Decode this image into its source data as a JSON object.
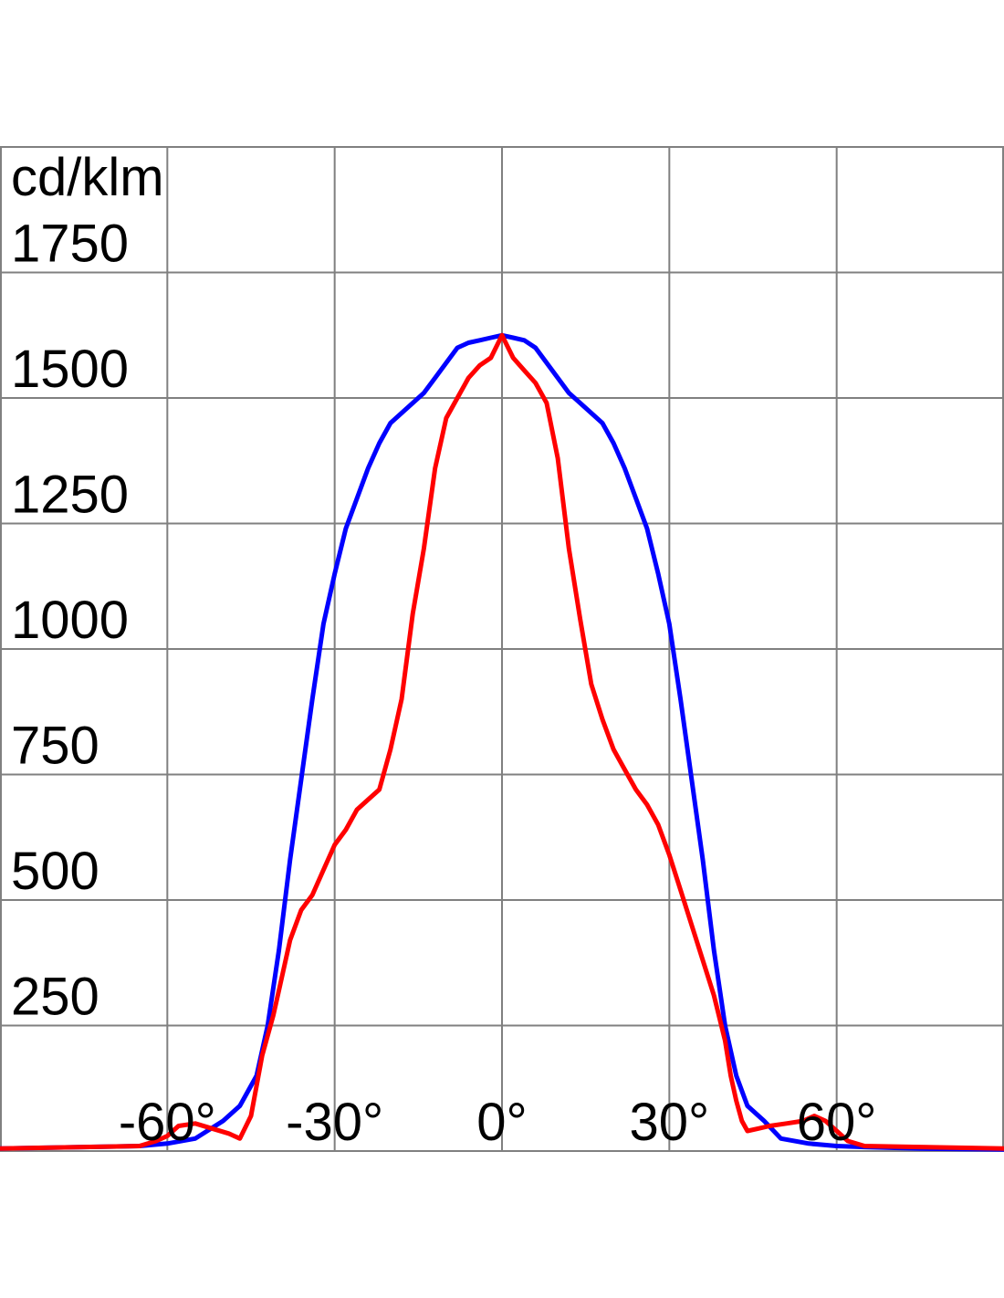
{
  "chart_data": {
    "type": "line",
    "ylabel": "cd/klm",
    "y_ticks": [
      "1750",
      "1500",
      "1250",
      "1000",
      "750",
      "500",
      "250"
    ],
    "x_ticks": [
      "-60°",
      "-30°",
      "0°",
      "30°",
      "60°"
    ],
    "xlim": [
      -90,
      90
    ],
    "ylim": [
      0,
      2000
    ],
    "x_unit": "degrees",
    "grid": true,
    "series": [
      {
        "color": "#0000ff",
        "x": [
          -90,
          -75,
          -65,
          -60,
          -55,
          -50,
          -47,
          -44,
          -42,
          -40,
          -38,
          -36,
          -34,
          -32,
          -30,
          -28,
          -26,
          -24,
          -22,
          -20,
          -18,
          -16,
          -14,
          -12,
          -10,
          -8,
          -6,
          -4,
          -2,
          0,
          2,
          4,
          6,
          8,
          10,
          12,
          14,
          16,
          18,
          20,
          22,
          24,
          26,
          28,
          30,
          32,
          34,
          36,
          38,
          40,
          42,
          44,
          47,
          50,
          55,
          60,
          65,
          75,
          90
        ],
        "y": [
          5,
          8,
          10,
          15,
          25,
          60,
          90,
          150,
          250,
          400,
          580,
          740,
          900,
          1050,
          1150,
          1240,
          1300,
          1360,
          1410,
          1450,
          1470,
          1490,
          1510,
          1540,
          1570,
          1600,
          1610,
          1615,
          1620,
          1625,
          1620,
          1615,
          1600,
          1570,
          1540,
          1510,
          1490,
          1470,
          1450,
          1410,
          1360,
          1300,
          1240,
          1150,
          1050,
          900,
          740,
          580,
          400,
          250,
          150,
          90,
          60,
          25,
          15,
          10,
          8,
          5,
          3
        ]
      },
      {
        "color": "#ff0000",
        "x": [
          -90,
          -75,
          -65,
          -62,
          -60,
          -58,
          -55,
          -52,
          -49,
          -47,
          -45,
          -44,
          -43,
          -42,
          -41,
          -40,
          -38,
          -36,
          -34,
          -32,
          -30,
          -28,
          -26,
          -24,
          -22,
          -20,
          -18,
          -16,
          -14,
          -12,
          -10,
          -8,
          -6,
          -4,
          -2,
          0,
          2,
          4,
          6,
          8,
          10,
          12,
          14,
          16,
          18,
          20,
          22,
          24,
          26,
          28,
          30,
          32,
          34,
          36,
          38,
          40,
          41,
          42,
          43,
          44,
          46,
          48,
          51,
          54,
          56,
          58,
          60,
          62,
          65,
          75,
          90
        ],
        "y": [
          5,
          8,
          10,
          20,
          30,
          50,
          55,
          45,
          35,
          25,
          70,
          130,
          190,
          230,
          270,
          320,
          420,
          480,
          510,
          560,
          610,
          640,
          680,
          700,
          720,
          800,
          900,
          1070,
          1200,
          1360,
          1460,
          1500,
          1540,
          1565,
          1580,
          1625,
          1580,
          1555,
          1530,
          1490,
          1380,
          1200,
          1060,
          930,
          860,
          800,
          760,
          720,
          690,
          650,
          590,
          520,
          450,
          380,
          310,
          220,
          150,
          100,
          60,
          40,
          45,
          50,
          55,
          60,
          70,
          60,
          40,
          20,
          10,
          8,
          5
        ]
      }
    ]
  }
}
